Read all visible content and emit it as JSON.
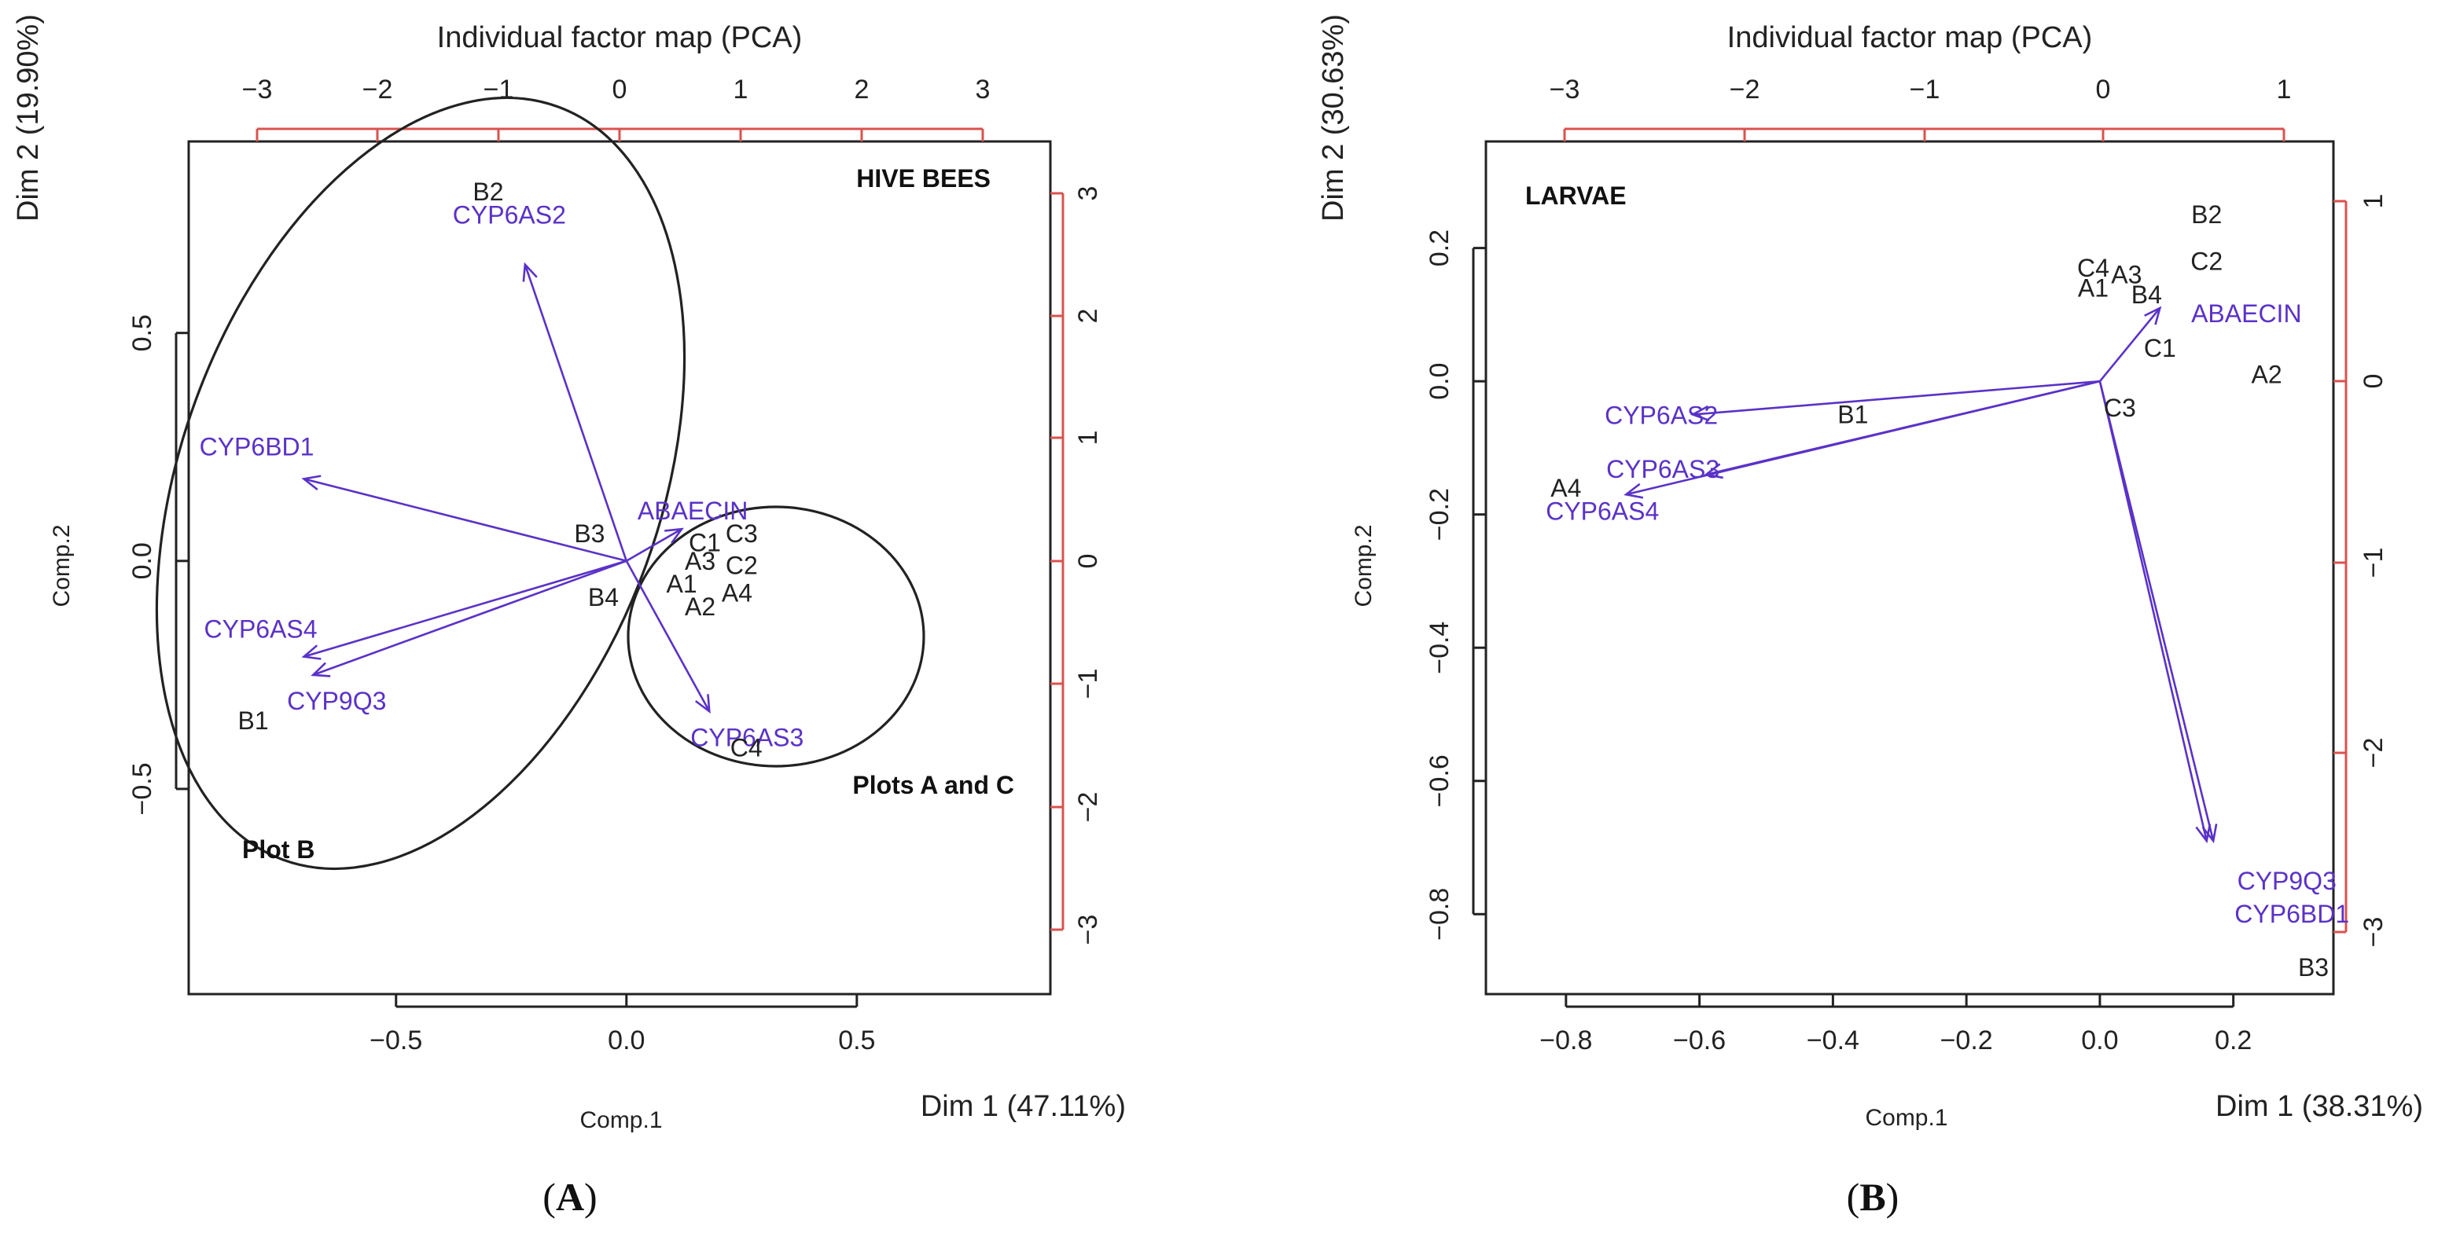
{
  "chart_data": [
    {
      "type": "scatter",
      "panel_label": "A",
      "title": "Individual factor map (PCA)",
      "x_dim_label": "Dim 1 (47.11%)",
      "y_dim_label": "Dim 2 (19.90%)",
      "xlabel": "Comp.1",
      "ylabel": "Comp.2",
      "xlim": [
        -0.95,
        0.92
      ],
      "ylim": [
        -0.95,
        0.92
      ],
      "bottom_ticks": [
        "-0.5",
        "0.0",
        "0.5"
      ],
      "left_ticks": [
        "-0.5",
        "0.0",
        "0.5"
      ],
      "top_ticks": [
        "-3",
        "-2",
        "-1",
        "0",
        "1",
        "2",
        "3"
      ],
      "right_ticks": [
        "-3",
        "-2",
        "-1",
        "0",
        "1",
        "2",
        "3"
      ],
      "annotations": [
        "HIVE BEES",
        "Plot B",
        "Plots A and C"
      ],
      "loadings": [
        {
          "name": "CYP6AS2",
          "x": -0.22,
          "y": 0.65
        },
        {
          "name": "CYP6BD1",
          "x": -0.7,
          "y": 0.18
        },
        {
          "name": "ABAECIN",
          "x": 0.12,
          "y": 0.07
        },
        {
          "name": "CYP6AS4",
          "x": -0.7,
          "y": -0.21
        },
        {
          "name": "CYP9Q3",
          "x": -0.68,
          "y": -0.25
        },
        {
          "name": "CYP6AS3",
          "x": 0.18,
          "y": -0.33
        }
      ],
      "points": [
        {
          "name": "B2",
          "x": -0.3,
          "y": 0.81
        },
        {
          "name": "B3",
          "x": -0.08,
          "y": 0.06
        },
        {
          "name": "B4",
          "x": -0.05,
          "y": -0.08
        },
        {
          "name": "B1",
          "x": -0.81,
          "y": -0.35
        },
        {
          "name": "C1",
          "x": 0.17,
          "y": 0.04
        },
        {
          "name": "C3",
          "x": 0.25,
          "y": 0.06
        },
        {
          "name": "A3",
          "x": 0.16,
          "y": 0.0
        },
        {
          "name": "C2",
          "x": 0.25,
          "y": -0.01
        },
        {
          "name": "A1",
          "x": 0.12,
          "y": -0.05
        },
        {
          "name": "A4",
          "x": 0.24,
          "y": -0.07
        },
        {
          "name": "A2",
          "x": 0.16,
          "y": -0.1
        },
        {
          "name": "C4",
          "x": 0.26,
          "y": -0.41
        }
      ]
    },
    {
      "type": "scatter",
      "panel_label": "B",
      "title": "Individual factor map (PCA)",
      "x_dim_label": "Dim 1 (38.31%)",
      "y_dim_label": "Dim 2 (30.63%)",
      "xlabel": "Comp.1",
      "ylabel": "Comp.2",
      "xlim": [
        -0.92,
        0.35
      ],
      "ylim": [
        -0.92,
        0.36
      ],
      "bottom_ticks": [
        "-0.8",
        "-0.6",
        "-0.4",
        "-0.2",
        "0.0",
        "0.2"
      ],
      "left_ticks": [
        "-0.8",
        "-0.6",
        "-0.4",
        "-0.2",
        "0.0",
        "0.2"
      ],
      "top_ticks": [
        "-3",
        "-2",
        "-1",
        "0",
        "1"
      ],
      "right_ticks": [
        "-3",
        "-2",
        "-1",
        "0",
        "1"
      ],
      "annotations": [
        "LARVAE"
      ],
      "loadings": [
        {
          "name": "ABAECIN",
          "x": 0.09,
          "y": 0.11
        },
        {
          "name": "CYP6AS2",
          "x": -0.61,
          "y": -0.05
        },
        {
          "name": "CYP6AS3",
          "x": -0.59,
          "y": -0.14
        },
        {
          "name": "CYP6AS4",
          "x": -0.71,
          "y": -0.17
        },
        {
          "name": "CYP9Q3",
          "x": 0.16,
          "y": -0.69
        },
        {
          "name": "CYP6BD1",
          "x": 0.17,
          "y": -0.69
        }
      ],
      "points": [
        {
          "name": "B2",
          "x": 0.16,
          "y": 0.25
        },
        {
          "name": "C2",
          "x": 0.16,
          "y": 0.18
        },
        {
          "name": "C4",
          "x": -0.01,
          "y": 0.17
        },
        {
          "name": "A3",
          "x": 0.04,
          "y": 0.16
        },
        {
          "name": "A1",
          "x": -0.01,
          "y": 0.14
        },
        {
          "name": "B4",
          "x": 0.07,
          "y": 0.13
        },
        {
          "name": "C1",
          "x": 0.09,
          "y": 0.05
        },
        {
          "name": "A2",
          "x": 0.25,
          "y": 0.01
        },
        {
          "name": "C3",
          "x": 0.03,
          "y": -0.04
        },
        {
          "name": "B1",
          "x": -0.37,
          "y": -0.05
        },
        {
          "name": "A4",
          "x": -0.8,
          "y": -0.16
        },
        {
          "name": "B3",
          "x": 0.32,
          "y": -0.88
        }
      ]
    }
  ]
}
